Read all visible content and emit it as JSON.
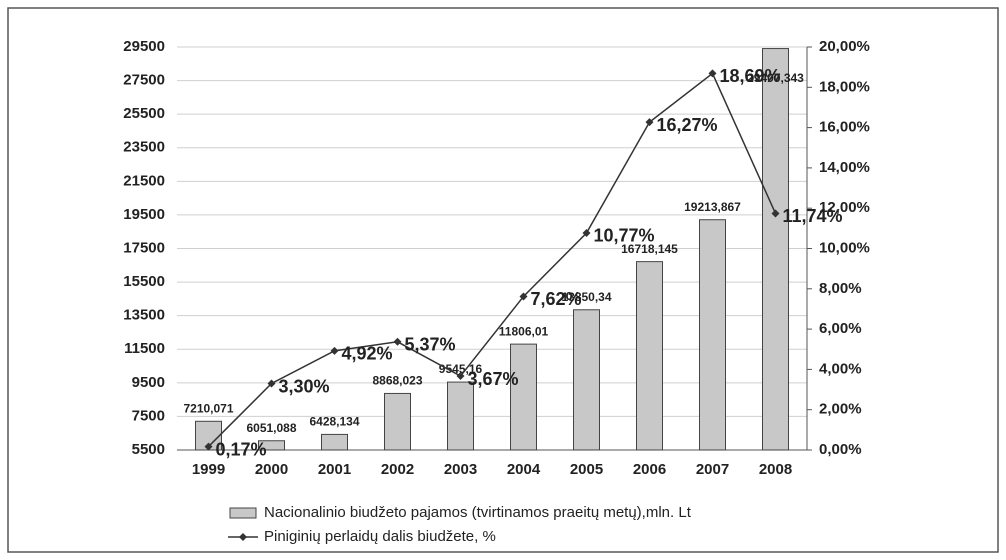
{
  "chart_data": {
    "type": "bar-line",
    "categories": [
      "1999",
      "2000",
      "2001",
      "2002",
      "2003",
      "2004",
      "2005",
      "2006",
      "2007",
      "2008"
    ],
    "series": [
      {
        "name": "Nacionalinio biudžeto pajamos (tvirtinamos praeitų metų),mln. Lt",
        "type": "bar",
        "color": "#c8c8c8",
        "values": [
          7210.071,
          6051.088,
          6428.134,
          8868.023,
          9545.16,
          11806.01,
          13850.34,
          16718.145,
          19213.867,
          29407.343
        ],
        "value_labels": [
          "7210,071",
          "6051,088",
          "6428,134",
          "8868,023",
          "9545,16",
          "11806,01",
          "13850,34",
          "16718,145",
          "19213,867",
          "29407,343"
        ]
      },
      {
        "name": "Piniginių perlaidų dalis biudžete, %",
        "type": "line",
        "axis": "y2",
        "color": "#333333",
        "values": [
          0.17,
          3.3,
          4.92,
          5.37,
          3.67,
          7.62,
          10.77,
          16.27,
          18.69,
          11.74
        ],
        "value_labels": [
          "0,17%",
          "3,30%",
          "4,92%",
          "5,37%",
          "3,67%",
          "7,62%",
          "10,77%",
          "16,27%",
          "18,69%",
          "11,74%"
        ]
      }
    ],
    "ylim": [
      5500,
      29500
    ],
    "yticks": [
      5500,
      7500,
      9500,
      11500,
      13500,
      15500,
      17500,
      19500,
      21500,
      23500,
      25500,
      27500,
      29500
    ],
    "y2lim": [
      0,
      20
    ],
    "y2ticks": [
      {
        "value": 0,
        "label": "0,00%"
      },
      {
        "value": 2,
        "label": "2,00%"
      },
      {
        "value": 4,
        "label": "4,00%"
      },
      {
        "value": 6,
        "label": "6,00%"
      },
      {
        "value": 8,
        "label": "8,00%"
      },
      {
        "value": 10,
        "label": "10,00%"
      },
      {
        "value": 12,
        "label": "12,00%"
      },
      {
        "value": 14,
        "label": "14,00%"
      },
      {
        "value": 16,
        "label": "16,00%"
      },
      {
        "value": 18,
        "label": "18,00%"
      },
      {
        "value": 20,
        "label": "20,00%"
      }
    ],
    "grid": true,
    "legend": "bottom"
  }
}
